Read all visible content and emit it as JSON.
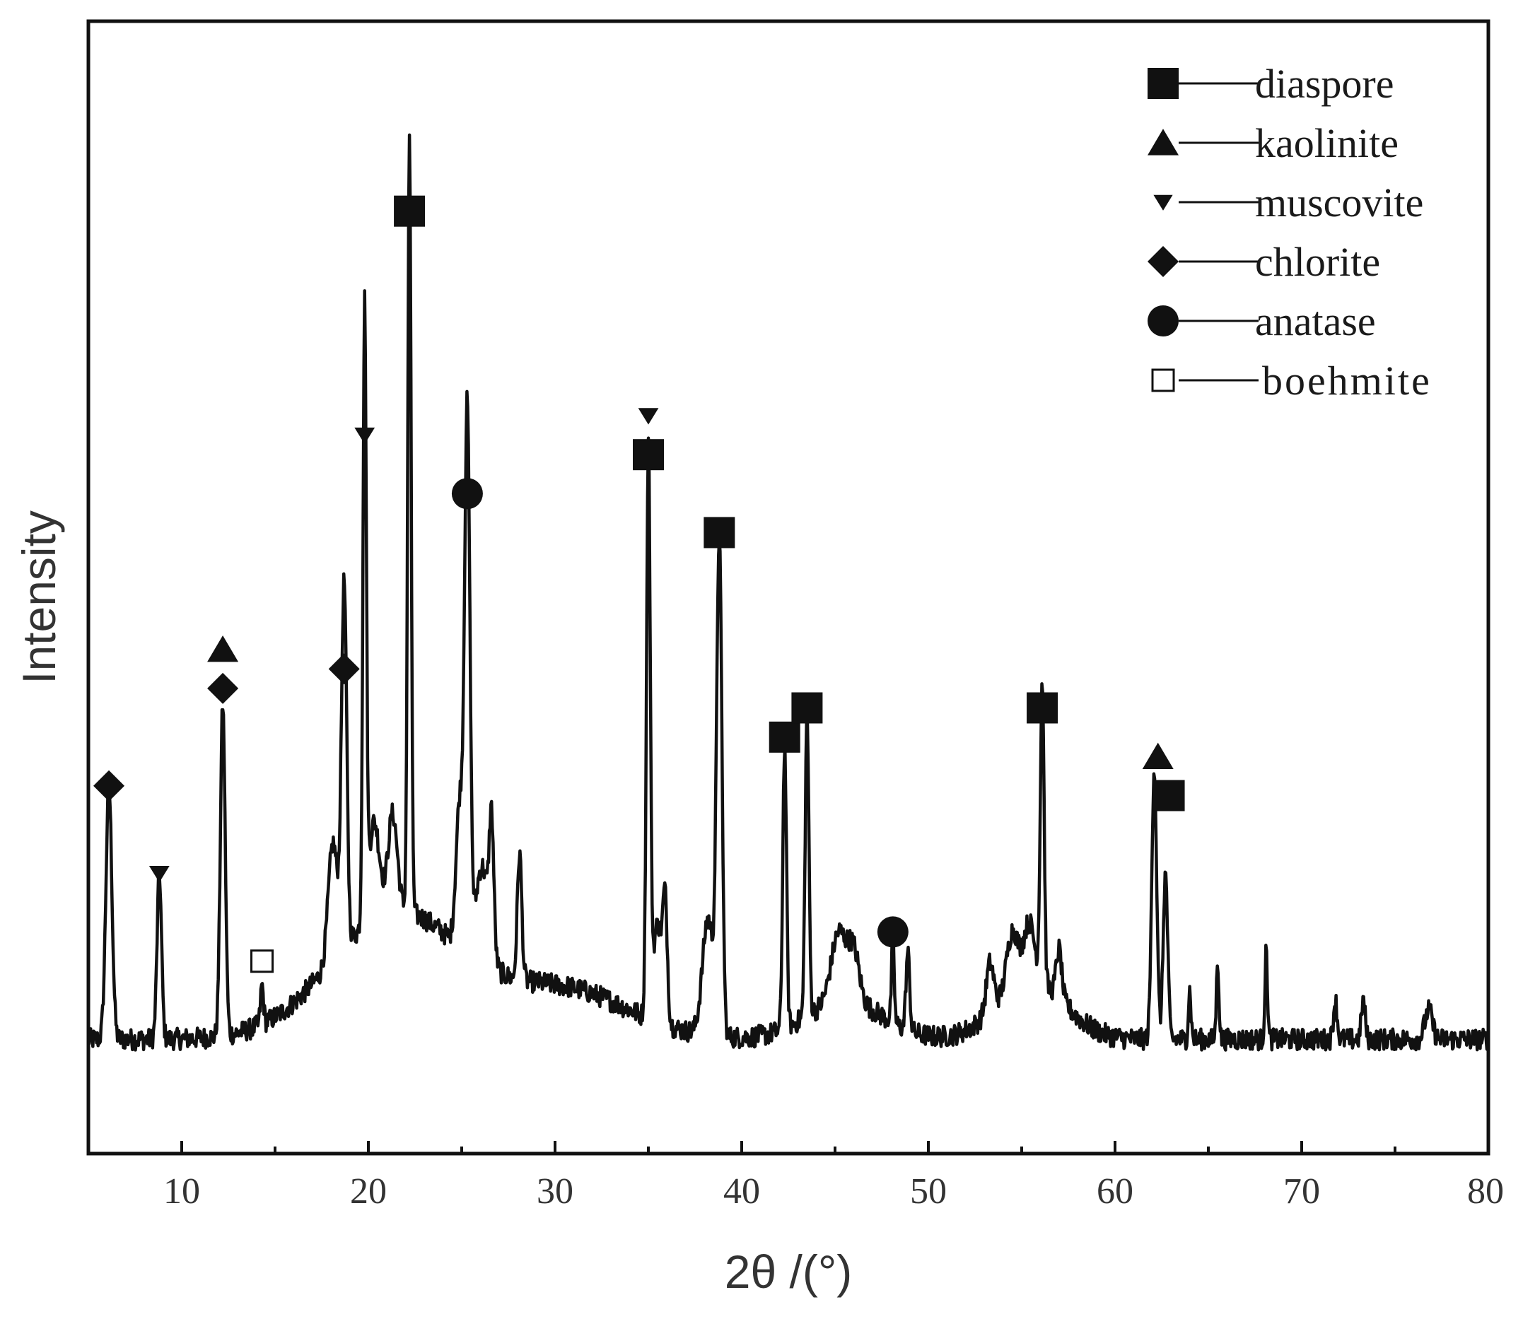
{
  "chart_data": {
    "type": "line",
    "title": "",
    "xlabel": "2θ /(°)",
    "ylabel": "Intensity",
    "xlim": [
      5,
      80
    ],
    "ylim": [
      0,
      100
    ],
    "xticks": [
      10,
      20,
      30,
      40,
      50,
      60,
      70,
      80
    ],
    "yticks_shown": false,
    "grid": false,
    "legend_placement": "top-right",
    "colors": {
      "line": "#111111",
      "axis": "#111111",
      "text": "#333333"
    },
    "legend": [
      {
        "marker": "filled-square",
        "label": "diaspore"
      },
      {
        "marker": "filled-triangle-up",
        "label": "kaolinite"
      },
      {
        "marker": "filled-triangle-down",
        "label": "muscovite"
      },
      {
        "marker": "filled-diamond",
        "label": "chlorite"
      },
      {
        "marker": "filled-circle",
        "label": "anatase"
      },
      {
        "marker": "open-square",
        "label": "boehmite"
      }
    ],
    "series": [
      {
        "peaks": [
          [
            6.1,
            26,
            0.16
          ],
          [
            8.8,
            17,
            0.12
          ],
          [
            12.2,
            34,
            0.13
          ],
          [
            14.3,
            4,
            0.08
          ],
          [
            18.1,
            12,
            0.25
          ],
          [
            18.7,
            37,
            0.14
          ],
          [
            19.8,
            62,
            0.09
          ],
          [
            20.3,
            10,
            0.3
          ],
          [
            21.3,
            10,
            0.25
          ],
          [
            22.2,
            80,
            0.09
          ],
          [
            24.9,
            15,
            0.2
          ],
          [
            25.3,
            54,
            0.14
          ],
          [
            26.1,
            10,
            0.35
          ],
          [
            26.6,
            13,
            0.12
          ],
          [
            28.1,
            13,
            0.12
          ],
          [
            35.0,
            58,
            0.1
          ],
          [
            35.5,
            10,
            0.25
          ],
          [
            35.9,
            11,
            0.12
          ],
          [
            38.2,
            12,
            0.3
          ],
          [
            38.8,
            50,
            0.14
          ],
          [
            42.3,
            29,
            0.1
          ],
          [
            43.5,
            31,
            0.1
          ],
          [
            45.2,
            7,
            0.4
          ],
          [
            46.0,
            5,
            0.3
          ],
          [
            48.1,
            9,
            0.07
          ],
          [
            48.9,
            8,
            0.1
          ],
          [
            53.3,
            5,
            0.2
          ],
          [
            54.5,
            6,
            0.3
          ],
          [
            55.4,
            6,
            0.3
          ],
          [
            56.1,
            31,
            0.1
          ],
          [
            57.0,
            5,
            0.15
          ],
          [
            62.1,
            28,
            0.13
          ],
          [
            62.7,
            17,
            0.12
          ],
          [
            64.0,
            5,
            0.07
          ],
          [
            65.5,
            8,
            0.07
          ],
          [
            68.1,
            9,
            0.07
          ],
          [
            71.8,
            4,
            0.1
          ],
          [
            73.3,
            4,
            0.1
          ],
          [
            76.8,
            3,
            0.2
          ]
        ],
        "humps": [
          [
            21.5,
            13,
            3.5
          ],
          [
            30.5,
            5,
            3.5
          ],
          [
            45.5,
            4,
            2
          ],
          [
            55.5,
            6,
            1.8
          ]
        ],
        "baseline": 2,
        "noise": 1.1
      }
    ],
    "annotations": [
      {
        "x": 6.1,
        "marker": "filled-diamond",
        "phase": "chlorite",
        "at": 26
      },
      {
        "x": 8.8,
        "marker": "filled-triangle-down",
        "phase": "muscovite",
        "at": 17
      },
      {
        "x": 12.2,
        "marker": "filled-diamond",
        "phase": "chlorite",
        "at": 36
      },
      {
        "x": 12.2,
        "marker": "filled-triangle-up",
        "phase": "kaolinite",
        "at": 40
      },
      {
        "x": 14.3,
        "marker": "open-square",
        "phase": "boehmite",
        "at": 8
      },
      {
        "x": 18.7,
        "marker": "filled-diamond",
        "phase": "chlorite",
        "at": 38
      },
      {
        "x": 19.8,
        "marker": "filled-triangle-down",
        "phase": "muscovite",
        "at": 62
      },
      {
        "x": 22.2,
        "marker": "filled-square",
        "phase": "diaspore",
        "at": 85
      },
      {
        "x": 25.3,
        "marker": "filled-circle",
        "phase": "anatase",
        "at": 56
      },
      {
        "x": 35.0,
        "marker": "filled-square",
        "phase": "diaspore",
        "at": 60
      },
      {
        "x": 35.0,
        "marker": "filled-triangle-down",
        "phase": "muscovite",
        "at": 64
      },
      {
        "x": 38.8,
        "marker": "filled-square",
        "phase": "diaspore",
        "at": 52
      },
      {
        "x": 42.3,
        "marker": "filled-square",
        "phase": "diaspore",
        "at": 31
      },
      {
        "x": 43.5,
        "marker": "filled-square",
        "phase": "diaspore",
        "at": 34
      },
      {
        "x": 48.1,
        "marker": "filled-circle",
        "phase": "anatase",
        "at": 11
      },
      {
        "x": 56.1,
        "marker": "filled-square",
        "phase": "diaspore",
        "at": 34
      },
      {
        "x": 62.3,
        "marker": "filled-triangle-up",
        "phase": "kaolinite",
        "at": 29
      },
      {
        "x": 62.9,
        "marker": "filled-square",
        "phase": "diaspore",
        "at": 25
      }
    ]
  }
}
